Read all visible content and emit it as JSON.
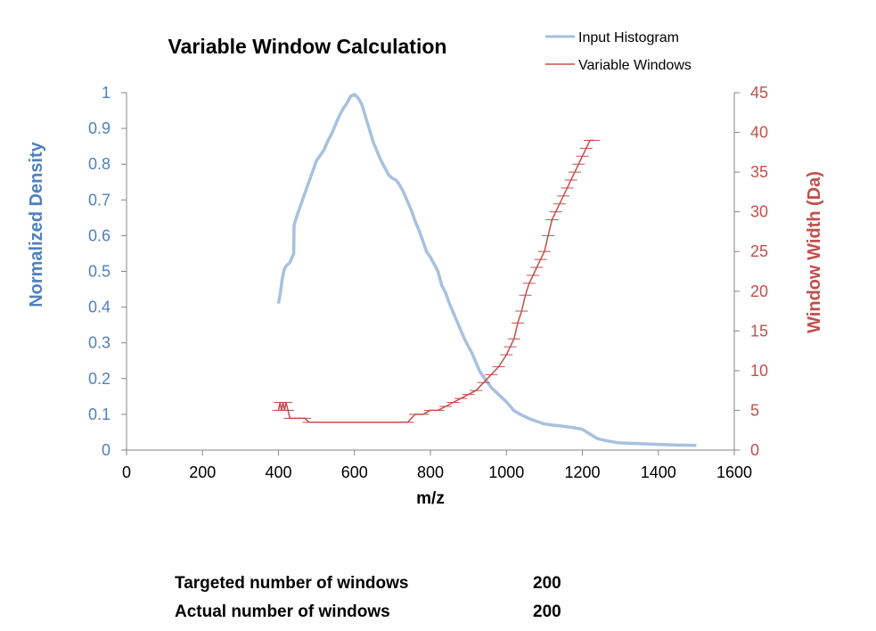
{
  "chart_data": {
    "type": "line",
    "title": "Variable Window Calculation",
    "xlabel": "m/z",
    "ylabel_left": "Normalized  Density",
    "ylabel_right": "Window Width (Da)",
    "xlim": [
      0,
      1600
    ],
    "xticks": [
      "0",
      "200",
      "400",
      "600",
      "800",
      "1000",
      "1200",
      "1400",
      "1600"
    ],
    "ylim_left": [
      0,
      1
    ],
    "yticks_left": [
      "0",
      "0.1",
      "0.2",
      "0.3",
      "0.4",
      "0.5",
      "0.6",
      "0.7",
      "0.8",
      "0.9",
      "1"
    ],
    "ylim_right": [
      0,
      45
    ],
    "yticks_right": [
      "0",
      "5",
      "10",
      "15",
      "20",
      "25",
      "30",
      "35",
      "40",
      "45"
    ],
    "legend_position": "top-right",
    "grid": false,
    "series": [
      {
        "name": "Input Histogram",
        "axis": "left",
        "color": "#a7c1de",
        "x": [
          400,
          405,
          410,
          415,
          420,
          430,
          440,
          441,
          450,
          460,
          470,
          480,
          490,
          500,
          510,
          520,
          530,
          540,
          550,
          560,
          570,
          580,
          590,
          600,
          610,
          620,
          630,
          640,
          650,
          660,
          670,
          680,
          690,
          700,
          710,
          720,
          730,
          740,
          750,
          760,
          770,
          780,
          790,
          800,
          810,
          820,
          830,
          840,
          850,
          860,
          870,
          880,
          890,
          900,
          910,
          920,
          930,
          940,
          950,
          960,
          970,
          980,
          1000,
          1020,
          1040,
          1050,
          1060,
          1080,
          1100,
          1120,
          1140,
          1160,
          1180,
          1200,
          1220,
          1240,
          1260,
          1280,
          1300,
          1350,
          1400,
          1450,
          1500
        ],
        "y": [
          0.41,
          0.44,
          0.48,
          0.505,
          0.515,
          0.525,
          0.55,
          0.63,
          0.66,
          0.69,
          0.72,
          0.75,
          0.78,
          0.81,
          0.825,
          0.84,
          0.865,
          0.885,
          0.91,
          0.935,
          0.955,
          0.97,
          0.99,
          0.995,
          0.985,
          0.965,
          0.93,
          0.895,
          0.86,
          0.835,
          0.81,
          0.79,
          0.77,
          0.76,
          0.755,
          0.74,
          0.72,
          0.695,
          0.67,
          0.64,
          0.615,
          0.585,
          0.555,
          0.54,
          0.52,
          0.5,
          0.46,
          0.44,
          0.41,
          0.385,
          0.36,
          0.335,
          0.31,
          0.29,
          0.27,
          0.245,
          0.22,
          0.205,
          0.19,
          0.175,
          0.165,
          0.155,
          0.135,
          0.11,
          0.098,
          0.093,
          0.088,
          0.08,
          0.073,
          0.07,
          0.068,
          0.065,
          0.062,
          0.058,
          0.045,
          0.032,
          0.027,
          0.023,
          0.02,
          0.018,
          0.016,
          0.014,
          0.013
        ]
      },
      {
        "name": "Variable Windows",
        "axis": "right",
        "color": "#c0504d",
        "x": [
          400,
          404,
          408,
          412,
          416,
          420,
          425,
          430,
          440,
          450,
          460,
          470,
          480,
          500,
          520,
          540,
          560,
          580,
          600,
          620,
          640,
          660,
          680,
          700,
          720,
          740,
          760,
          780,
          800,
          820,
          840,
          860,
          880,
          900,
          920,
          940,
          960,
          980,
          1000,
          1010,
          1020,
          1030,
          1040,
          1050,
          1060,
          1070,
          1080,
          1090,
          1100,
          1110,
          1120,
          1130,
          1140,
          1150,
          1160,
          1170,
          1180,
          1190,
          1200,
          1210,
          1220,
          1230
        ],
        "y": [
          5,
          6,
          5,
          6,
          5,
          6,
          5,
          4,
          4,
          4,
          4,
          4,
          3.5,
          3.5,
          3.5,
          3.5,
          3.5,
          3.5,
          3.5,
          3.5,
          3.5,
          3.5,
          3.5,
          3.5,
          3.5,
          3.5,
          4.5,
          4.5,
          5,
          5,
          5.5,
          6,
          6.5,
          7,
          7.5,
          8.5,
          9.5,
          10.5,
          12,
          13,
          14,
          16,
          17.5,
          19.5,
          21,
          22,
          23,
          24,
          25,
          27,
          29,
          30,
          31,
          32,
          33,
          34,
          35,
          36,
          37,
          38,
          39,
          39
        ]
      }
    ]
  },
  "summary": {
    "targeted_label": "Targeted number of windows",
    "targeted_value": "200",
    "actual_label": "Actual number of windows",
    "actual_value": "200"
  }
}
